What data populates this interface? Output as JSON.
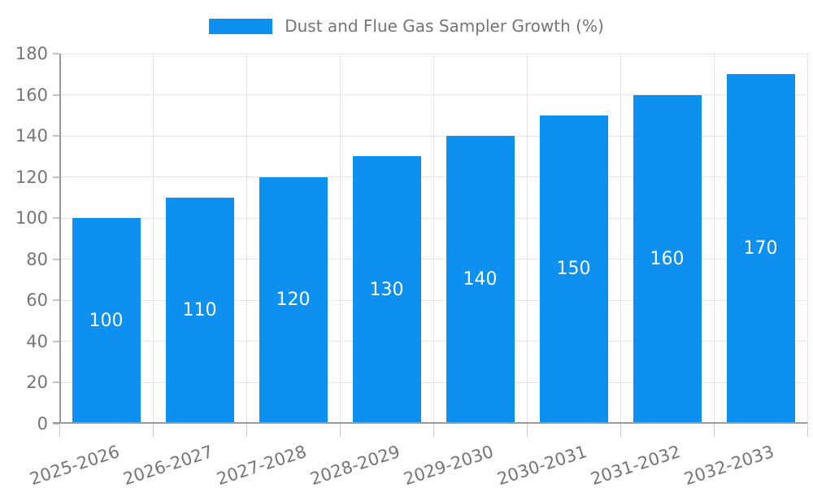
{
  "legend": {
    "label": "Dust and Flue Gas Sampler Growth (%)"
  },
  "chart_data": {
    "type": "bar",
    "title": "Dust and Flue Gas Sampler Growth (%)",
    "categories": [
      "2025-2026",
      "2026-2027",
      "2027-2028",
      "2028-2029",
      "2029-2030",
      "2030-2031",
      "2031-2032",
      "2032-2033"
    ],
    "values": [
      100,
      110,
      120,
      130,
      140,
      150,
      160,
      170
    ],
    "bar_labels": [
      "100",
      "110",
      "120",
      "130",
      "140",
      "150",
      "160",
      "170"
    ],
    "xlabel": "",
    "ylabel": "",
    "ylim": [
      0,
      180
    ],
    "yticks": [
      0,
      20,
      40,
      60,
      80,
      100,
      120,
      140,
      160,
      180
    ],
    "grid": true,
    "legend_position": "top-center",
    "colors": {
      "bar": "#0d90f0",
      "bar_label_text": "#ffffff",
      "grid_line": "#e4e4e4",
      "axis_line": "#9a9a9a",
      "tick_mark": "#c9c9c9",
      "tick_text": "#757575",
      "background": "#ffffff"
    }
  }
}
